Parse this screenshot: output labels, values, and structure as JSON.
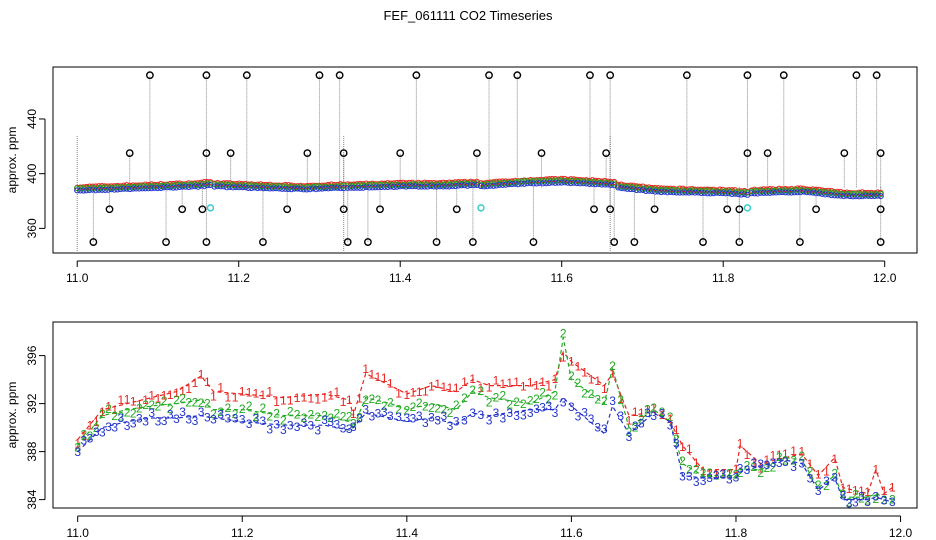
{
  "figure_title": "FEF_061111  CO2 Timeseries",
  "colors": {
    "series1": "#e8231f",
    "series2": "#22aa22",
    "series3": "#2233cc",
    "cal": "#33cccc",
    "raw_line": "#888888",
    "outlier": "#000000"
  },
  "chart_data": [
    {
      "type": "scatter",
      "title": "",
      "xlabel": "",
      "ylabel": "approx. ppm",
      "xlim": [
        10.97,
        12.04
      ],
      "ylim": [
        342,
        478
      ],
      "x_ticks": [
        11.0,
        11.2,
        11.4,
        11.6,
        11.8,
        12.0
      ],
      "x_tick_labels": [
        "11.0",
        "11.2",
        "11.4",
        "11.6",
        "11.8",
        "12.0"
      ],
      "y_ticks": [
        360,
        400,
        440
      ],
      "y_tick_labels": [
        "360",
        "400",
        "440"
      ],
      "baseline_segments": [
        {
          "x": [
            11.0,
            11.05,
            11.1,
            11.15,
            11.165
          ],
          "y": [
            388,
            389,
            390,
            391,
            392
          ]
        },
        {
          "x": [
            11.17,
            11.22,
            11.28,
            11.33
          ],
          "y": [
            391,
            390,
            389,
            390
          ]
        },
        {
          "x": [
            11.335,
            11.4,
            11.45,
            11.495
          ],
          "y": [
            390,
            391,
            391,
            392
          ]
        },
        {
          "x": [
            11.5,
            11.55,
            11.6,
            11.665
          ],
          "y": [
            391,
            393,
            394,
            392
          ]
        },
        {
          "x": [
            11.67,
            11.72,
            11.8,
            11.83
          ],
          "y": [
            390,
            387,
            386,
            385
          ]
        },
        {
          "x": [
            11.835,
            11.9,
            11.95,
            11.995
          ],
          "y": [
            386,
            387,
            384,
            384
          ]
        }
      ],
      "outliers_high": [
        11.09,
        11.16,
        11.21,
        11.3,
        11.325,
        11.42,
        11.51,
        11.545,
        11.635,
        11.66,
        11.755,
        11.83,
        11.875,
        11.965,
        11.99
      ],
      "outliers_mid_high": [
        11.065,
        11.16,
        11.19,
        11.285,
        11.33,
        11.4,
        11.495,
        11.575,
        11.655,
        11.83,
        11.855,
        11.95,
        11.995
      ],
      "outliers_low": [
        11.02,
        11.11,
        11.16,
        11.23,
        11.335,
        11.36,
        11.445,
        11.49,
        11.565,
        11.665,
        11.69,
        11.775,
        11.82,
        11.895,
        11.995
      ],
      "outliers_mid_low": [
        11.04,
        11.13,
        11.155,
        11.26,
        11.33,
        11.375,
        11.47,
        11.64,
        11.66,
        11.715,
        11.805,
        11.82,
        11.915,
        11.995
      ],
      "outlier_levels": {
        "high": 472,
        "mid_high": 415,
        "mid_low": 374,
        "low": 350
      },
      "cal_points": [
        {
          "x": 11.165,
          "y": 375
        },
        {
          "x": 11.5,
          "y": 375
        },
        {
          "x": 11.83,
          "y": 375
        }
      ]
    },
    {
      "type": "line",
      "title": "",
      "xlabel": "",
      "ylabel": "approx. ppm",
      "xlim": [
        10.97,
        12.02
      ],
      "ylim": [
        383.3,
        398.8
      ],
      "x_ticks": [
        11.0,
        11.2,
        11.4,
        11.6,
        11.8,
        12.0
      ],
      "x_tick_labels": [
        "11.0",
        "11.2",
        "11.4",
        "11.6",
        "11.8",
        "12.0"
      ],
      "y_ticks": [
        384,
        388,
        392,
        396
      ],
      "y_tick_labels": [
        "384",
        "388",
        "392",
        "396"
      ],
      "series": [
        {
          "name": "1",
          "label": "1",
          "x": [
            11.0,
            11.03,
            11.06,
            11.09,
            11.12,
            11.15,
            11.165,
            11.2,
            11.25,
            11.3,
            11.33,
            11.335,
            11.35,
            11.38,
            11.4,
            11.43,
            11.46,
            11.48,
            11.5,
            11.55,
            11.58,
            11.59,
            11.6,
            11.64,
            11.65,
            11.67,
            11.7,
            11.72,
            11.735,
            11.76,
            11.8,
            11.805,
            11.83,
            11.86,
            11.88,
            11.9,
            11.92,
            11.93,
            11.96,
            11.97,
            11.98,
            11.99
          ],
          "y": [
            389,
            391.5,
            392,
            392.5,
            393,
            394.3,
            393,
            392.8,
            392.5,
            392.8,
            392.3,
            391,
            394.5,
            393.5,
            392.8,
            393.5,
            393,
            394,
            393.5,
            393.5,
            394,
            396.3,
            395.5,
            393.5,
            394.5,
            391,
            391.3,
            390.5,
            388.5,
            386.5,
            386.5,
            388.5,
            387,
            387.5,
            387.8,
            386,
            387.5,
            385,
            384.5,
            386.5,
            384.5,
            385
          ]
        },
        {
          "name": "2",
          "label": "2",
          "x": [
            11.0,
            11.03,
            11.06,
            11.09,
            11.12,
            11.15,
            11.165,
            11.2,
            11.25,
            11.3,
            11.33,
            11.335,
            11.35,
            11.38,
            11.4,
            11.43,
            11.46,
            11.48,
            11.5,
            11.55,
            11.58,
            11.59,
            11.6,
            11.64,
            11.65,
            11.67,
            11.7,
            11.72,
            11.735,
            11.76,
            11.8,
            11.805,
            11.83,
            11.86,
            11.88,
            11.9,
            11.92,
            11.93,
            11.96,
            11.97,
            11.98,
            11.99
          ],
          "y": [
            388.5,
            391,
            391.5,
            391.8,
            392,
            392.3,
            391.5,
            391.5,
            391,
            391,
            390.5,
            390,
            392.5,
            392,
            391.5,
            392,
            391.5,
            393,
            392.5,
            392,
            393,
            397.5,
            394,
            392,
            395,
            390,
            391.5,
            390.5,
            387,
            386,
            386,
            386.5,
            386.5,
            387.5,
            387.3,
            385,
            386,
            384.2,
            384.2,
            384.5,
            384.2,
            384
          ]
        },
        {
          "name": "3",
          "label": "3",
          "x": [
            11.0,
            11.03,
            11.06,
            11.09,
            11.12,
            11.15,
            11.165,
            11.2,
            11.25,
            11.3,
            11.33,
            11.335,
            11.35,
            11.38,
            11.4,
            11.43,
            11.46,
            11.48,
            11.5,
            11.55,
            11.58,
            11.59,
            11.6,
            11.64,
            11.65,
            11.67,
            11.7,
            11.72,
            11.735,
            11.76,
            11.8,
            11.805,
            11.83,
            11.86,
            11.88,
            11.9,
            11.92,
            11.93,
            11.96,
            11.97,
            11.98,
            11.99
          ],
          "y": [
            388,
            390,
            390.5,
            390.8,
            390.8,
            391,
            390.8,
            390.5,
            390.2,
            390.2,
            389.8,
            390,
            391.2,
            390.8,
            390.5,
            390.8,
            390.3,
            391.2,
            391,
            391.5,
            391.5,
            392.5,
            391.8,
            389.5,
            391.8,
            389.5,
            391.2,
            390.5,
            386,
            385.8,
            385.8,
            386.3,
            386.8,
            387.3,
            387,
            384.8,
            385.8,
            384,
            384,
            384.2,
            384,
            383.8
          ]
        }
      ]
    }
  ]
}
